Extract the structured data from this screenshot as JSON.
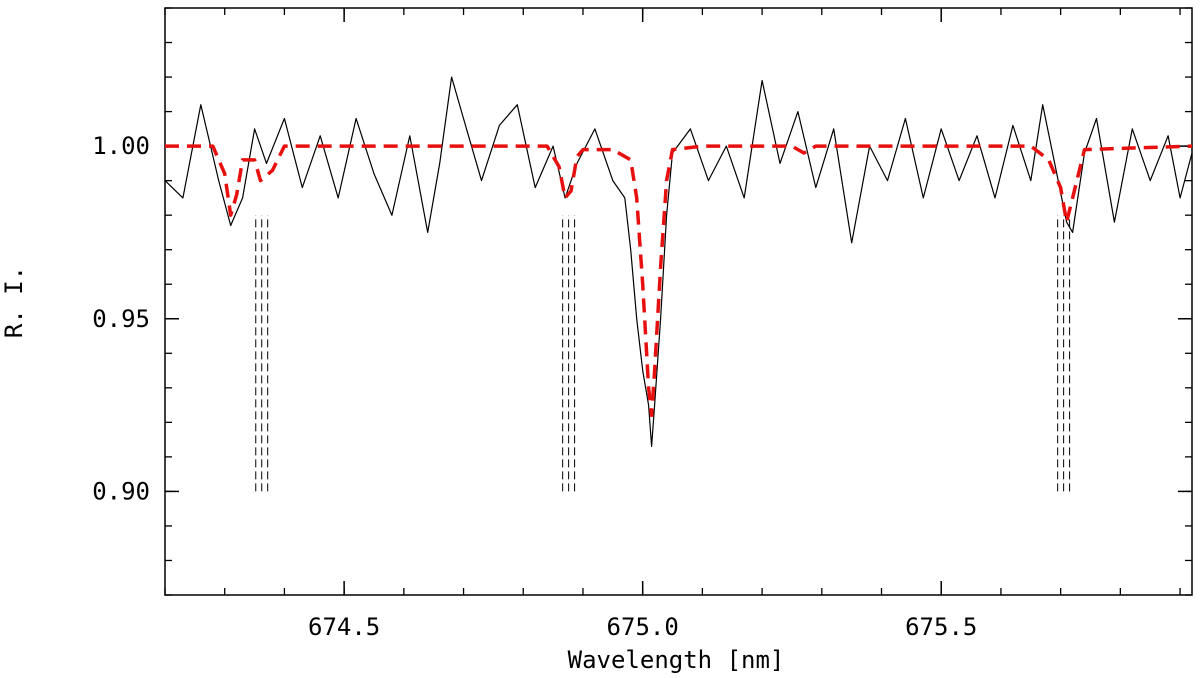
{
  "chart_data": {
    "type": "line",
    "title": "",
    "xlabel": "Wavelength [nm]",
    "ylabel": "R. I.",
    "xlim": [
      674.2,
      675.92
    ],
    "ylim": [
      0.87,
      1.04
    ],
    "x_ticks": [
      674.5,
      675.0,
      675.5
    ],
    "x_tick_labels": [
      "674.5",
      "675.0",
      "675.5"
    ],
    "y_ticks": [
      0.9,
      0.95,
      1.0
    ],
    "y_tick_labels": [
      "0.90",
      "0.95",
      "1.00"
    ],
    "x_minor_step": 0.1,
    "y_minor_step": 0.01,
    "grid": false,
    "legend": "none",
    "series": [
      {
        "style": "solid",
        "color": "#000000",
        "points": [
          [
            674.2,
            0.99
          ],
          [
            674.23,
            0.985
          ],
          [
            674.26,
            1.012
          ],
          [
            674.29,
            0.99
          ],
          [
            674.31,
            0.977
          ],
          [
            674.33,
            0.985
          ],
          [
            674.35,
            1.005
          ],
          [
            674.37,
            0.995
          ],
          [
            674.4,
            1.008
          ],
          [
            674.43,
            0.988
          ],
          [
            674.46,
            1.003
          ],
          [
            674.49,
            0.985
          ],
          [
            674.52,
            1.008
          ],
          [
            674.55,
            0.992
          ],
          [
            674.58,
            0.98
          ],
          [
            674.61,
            1.003
          ],
          [
            674.64,
            0.975
          ],
          [
            674.66,
            0.995
          ],
          [
            674.68,
            1.02
          ],
          [
            674.7,
            1.008
          ],
          [
            674.73,
            0.99
          ],
          [
            674.76,
            1.006
          ],
          [
            674.79,
            1.012
          ],
          [
            674.82,
            0.988
          ],
          [
            674.85,
            1.0
          ],
          [
            674.87,
            0.985
          ],
          [
            674.89,
            0.995
          ],
          [
            674.92,
            1.005
          ],
          [
            674.95,
            0.99
          ],
          [
            674.97,
            0.985
          ],
          [
            674.98,
            0.97
          ],
          [
            674.99,
            0.95
          ],
          [
            675.0,
            0.935
          ],
          [
            675.01,
            0.925
          ],
          [
            675.015,
            0.913
          ],
          [
            675.02,
            0.925
          ],
          [
            675.03,
            0.95
          ],
          [
            675.04,
            0.98
          ],
          [
            675.05,
            0.998
          ],
          [
            675.08,
            1.005
          ],
          [
            675.11,
            0.99
          ],
          [
            675.14,
            1.0
          ],
          [
            675.17,
            0.985
          ],
          [
            675.2,
            1.019
          ],
          [
            675.23,
            0.995
          ],
          [
            675.26,
            1.01
          ],
          [
            675.29,
            0.988
          ],
          [
            675.32,
            1.005
          ],
          [
            675.35,
            0.972
          ],
          [
            675.38,
            1.0
          ],
          [
            675.41,
            0.99
          ],
          [
            675.44,
            1.008
          ],
          [
            675.47,
            0.985
          ],
          [
            675.5,
            1.005
          ],
          [
            675.53,
            0.99
          ],
          [
            675.56,
            1.003
          ],
          [
            675.59,
            0.985
          ],
          [
            675.62,
            1.006
          ],
          [
            675.65,
            0.99
          ],
          [
            675.67,
            1.012
          ],
          [
            675.69,
            0.995
          ],
          [
            675.71,
            0.978
          ],
          [
            675.72,
            0.975
          ],
          [
            675.74,
            0.998
          ],
          [
            675.76,
            1.008
          ],
          [
            675.79,
            0.978
          ],
          [
            675.82,
            1.005
          ],
          [
            675.85,
            0.99
          ],
          [
            675.88,
            1.003
          ],
          [
            675.9,
            0.985
          ],
          [
            675.92,
            0.998
          ]
        ]
      },
      {
        "style": "dashed",
        "color": "#e8100f",
        "points": [
          [
            674.2,
            1.0
          ],
          [
            674.28,
            1.0
          ],
          [
            674.3,
            0.992
          ],
          [
            674.31,
            0.98
          ],
          [
            674.32,
            0.986
          ],
          [
            674.33,
            0.996
          ],
          [
            674.35,
            0.996
          ],
          [
            674.36,
            0.99
          ],
          [
            674.38,
            0.993
          ],
          [
            674.4,
            1.0
          ],
          [
            674.84,
            1.0
          ],
          [
            674.86,
            0.994
          ],
          [
            674.87,
            0.985
          ],
          [
            674.88,
            0.987
          ],
          [
            674.89,
            0.997
          ],
          [
            674.9,
            0.999
          ],
          [
            674.95,
            0.999
          ],
          [
            674.98,
            0.996
          ],
          [
            674.99,
            0.985
          ],
          [
            675.0,
            0.96
          ],
          [
            675.01,
            0.93
          ],
          [
            675.015,
            0.922
          ],
          [
            675.02,
            0.935
          ],
          [
            675.03,
            0.965
          ],
          [
            675.04,
            0.99
          ],
          [
            675.05,
            0.999
          ],
          [
            675.1,
            1.0
          ],
          [
            675.25,
            1.0
          ],
          [
            675.27,
            0.998
          ],
          [
            675.29,
            1.0
          ],
          [
            675.65,
            1.0
          ],
          [
            675.68,
            0.996
          ],
          [
            675.7,
            0.988
          ],
          [
            675.71,
            0.978
          ],
          [
            675.72,
            0.985
          ],
          [
            675.74,
            0.999
          ],
          [
            675.92,
            1.0
          ]
        ]
      }
    ],
    "line_marker_groups": [
      [
        674.352,
        674.362,
        674.372
      ],
      [
        674.866,
        674.876,
        674.886
      ],
      [
        675.695,
        675.705,
        675.715
      ]
    ],
    "line_marker_range": [
      0.9,
      0.98
    ]
  }
}
